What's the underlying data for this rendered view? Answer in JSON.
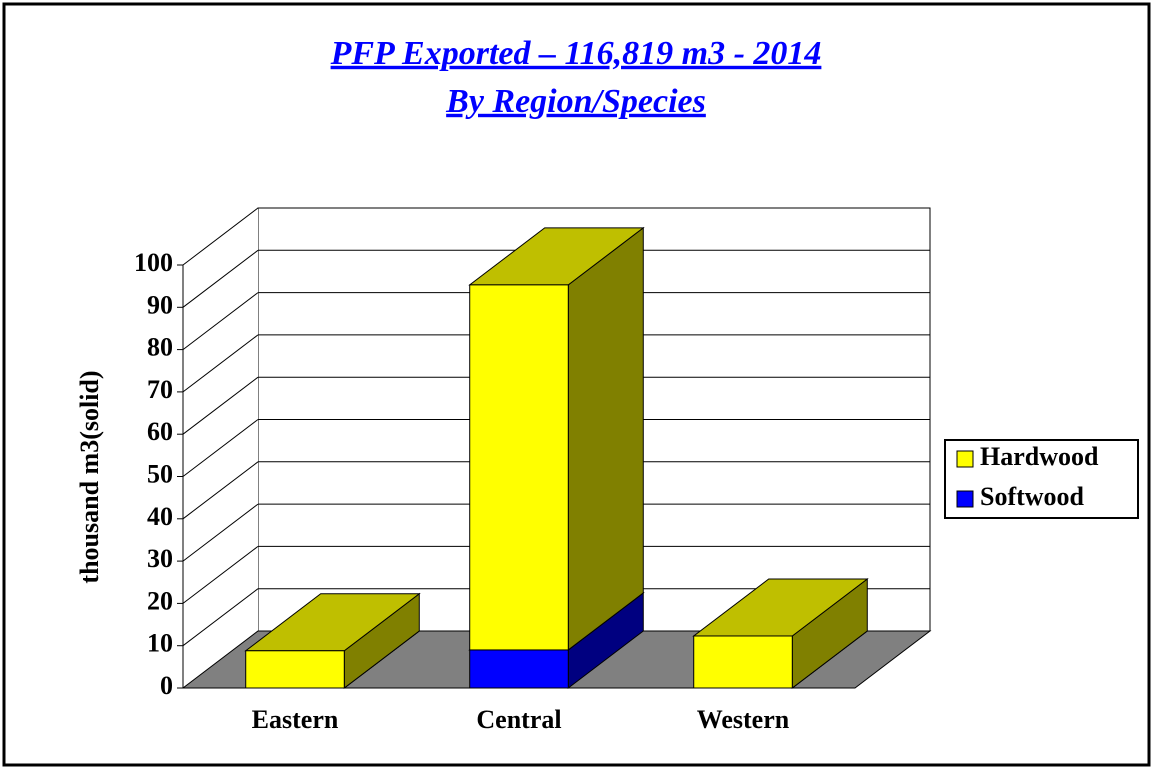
{
  "chart_data": {
    "type": "bar3d_stacked",
    "title": "PFP Exported – 116,819 m3 - 2014",
    "subtitle": "By Region/Species",
    "ylabel": "thousand m3(solid)",
    "categories": [
      "Eastern",
      "Central",
      "Western"
    ],
    "series": [
      {
        "name": "Hardwood",
        "color": "#ffff00",
        "values": [
          8.8,
          86.3,
          12.3
        ]
      },
      {
        "name": "Softwood",
        "color": "#0000ff",
        "values": [
          0,
          9,
          0
        ]
      }
    ],
    "ylim": [
      0,
      100
    ],
    "yticks": [
      0,
      10,
      20,
      30,
      40,
      50,
      60,
      70,
      80,
      90,
      100
    ],
    "grid": true,
    "legend": "right"
  }
}
